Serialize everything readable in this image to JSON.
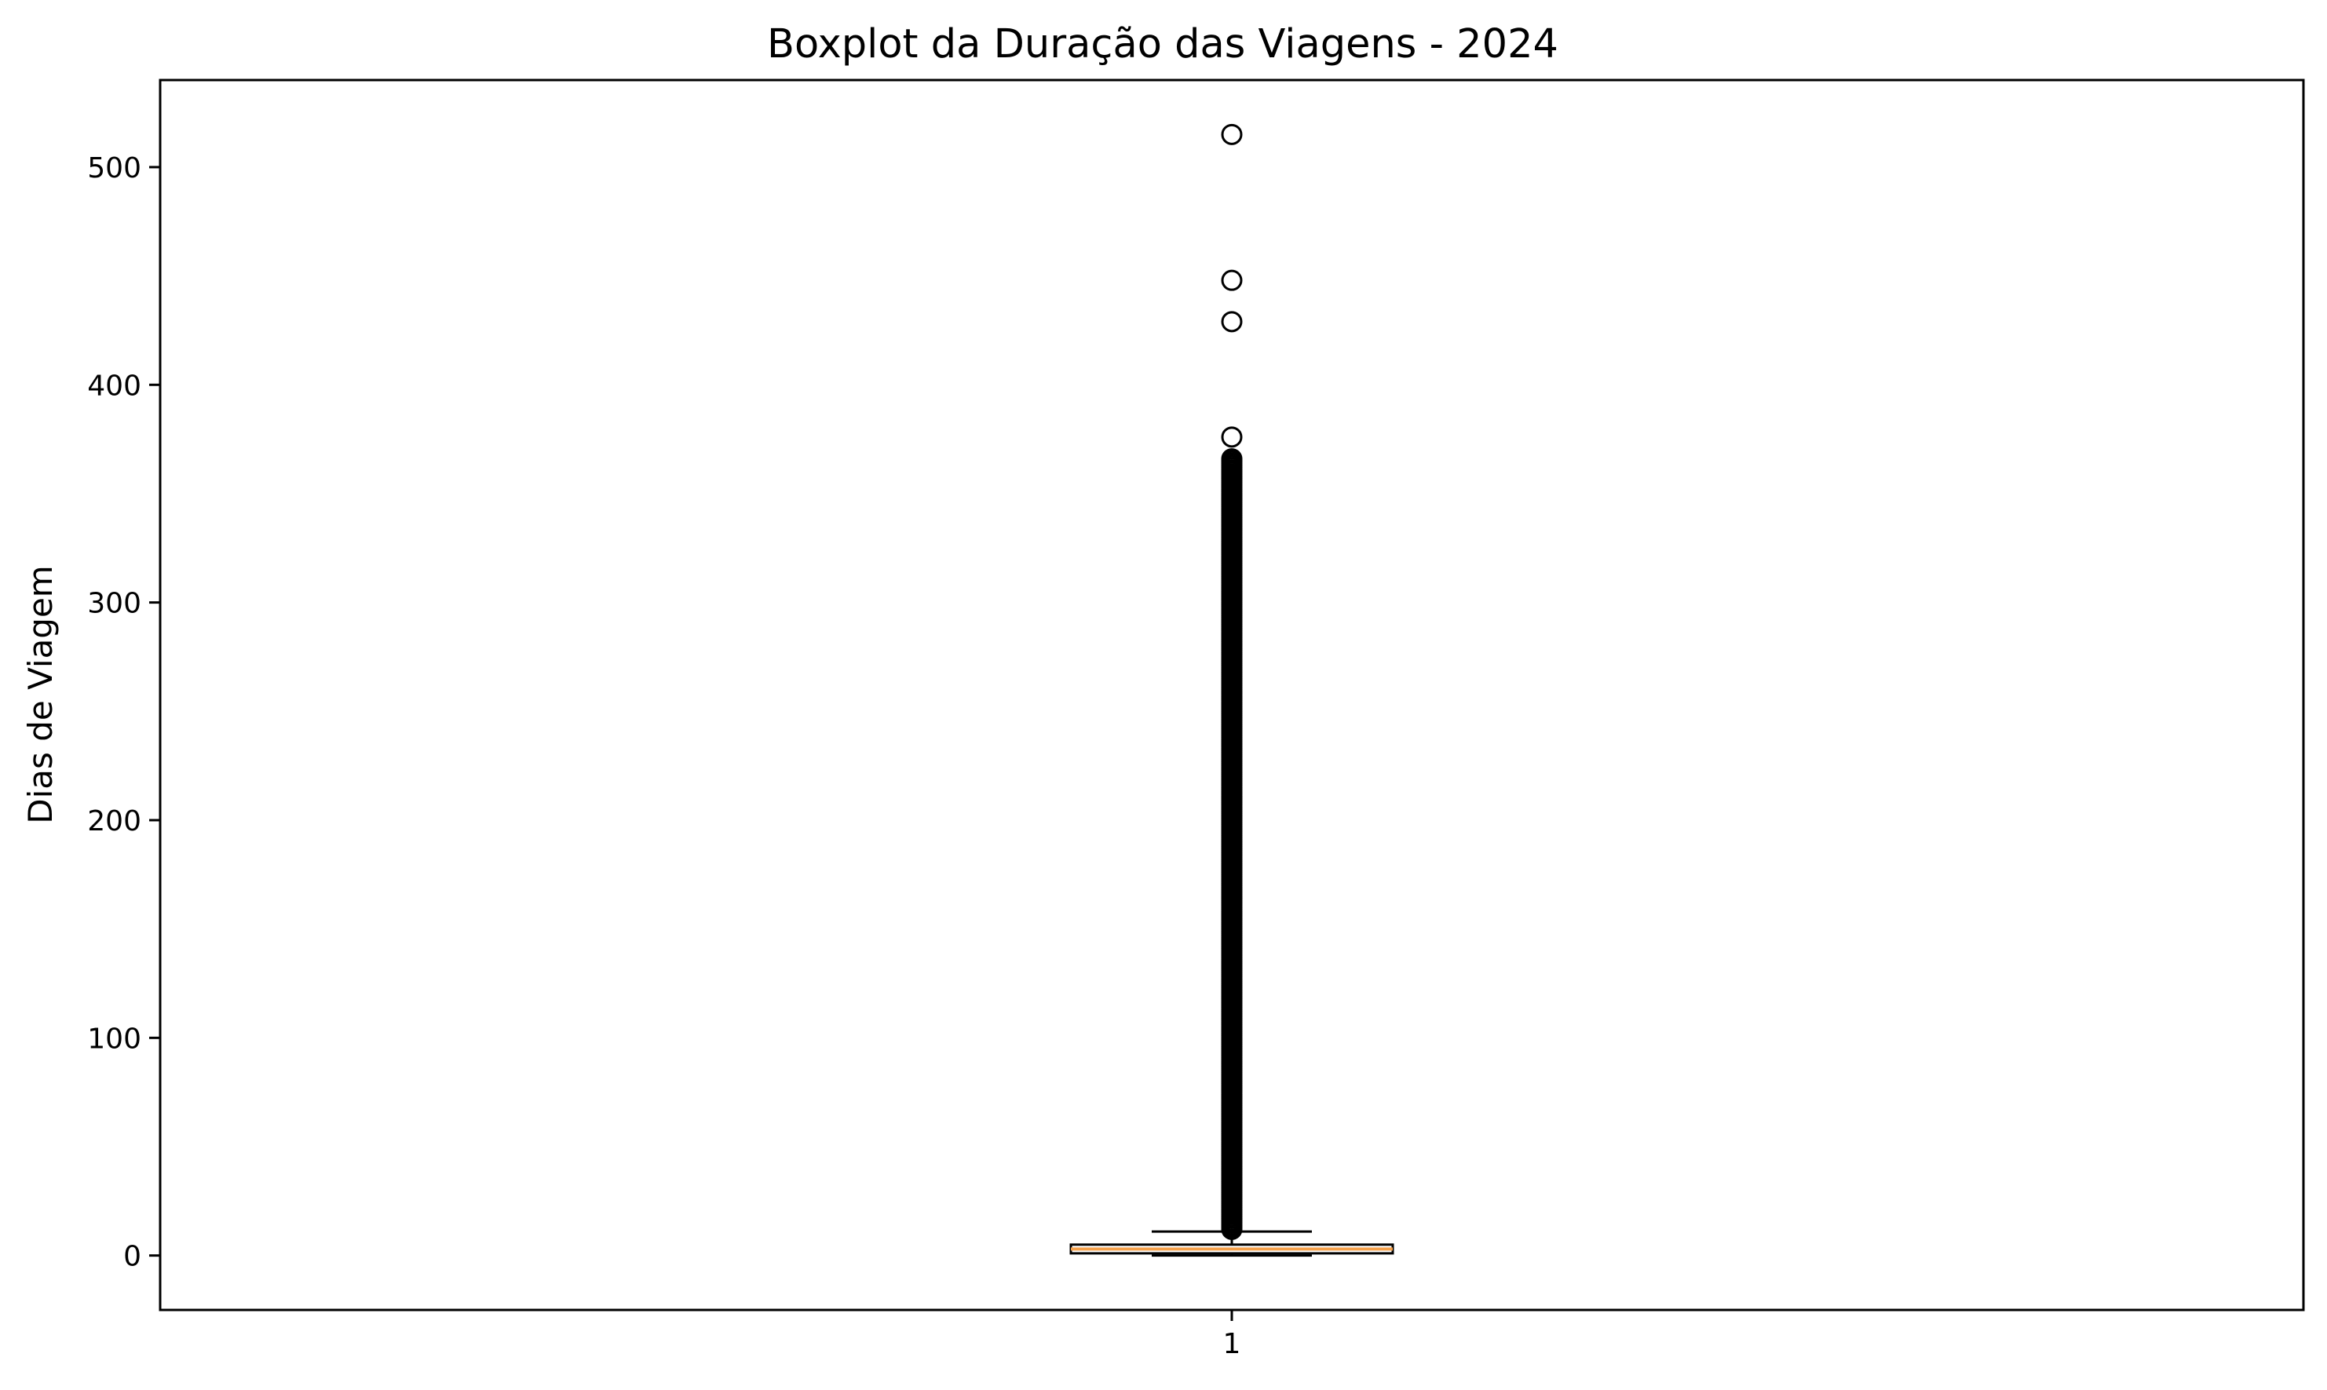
{
  "chart_data": {
    "type": "boxplot",
    "title": "Boxplot da Duração das Viagens - 2024",
    "xlabel": "",
    "ylabel": "Dias de Viagem",
    "categories": [
      "1"
    ],
    "ylim": [
      -25,
      540
    ],
    "yticks": [
      0,
      100,
      200,
      300,
      400,
      500
    ],
    "grid": false,
    "box": {
      "category": "1",
      "whisker_low": 0,
      "q1": 1,
      "median": 3,
      "q3": 5,
      "whisker_high": 11,
      "outliers": [
        515,
        448,
        429,
        376
      ],
      "outlier_band": [
        12,
        366
      ]
    },
    "colors": {
      "median": "#f5a04a",
      "box_edge": "#000000",
      "flier_edge": "#000000"
    }
  }
}
